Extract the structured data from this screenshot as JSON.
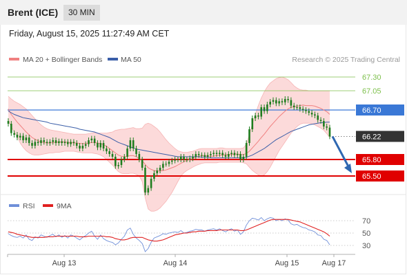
{
  "header": {
    "instrument": "Brent (ICE)",
    "timeframe": "30 MIN"
  },
  "datetime": "Friday, August 15, 2025 11:27:49 AM CET",
  "legend": {
    "bollinger_label": "MA 20 + Bollinger Bands",
    "ma50_label": "MA 50",
    "rsi_label": "RSI",
    "ma9_label": "9MA",
    "credit": "Research © 2025 Trading Central"
  },
  "colors": {
    "bollinger": "#f08080",
    "band_fill": "#fbd3d3",
    "ma50": "#3a5ea8",
    "candle": "#1e7d1e",
    "support": "#e00000",
    "resistance": "#7cbf4a",
    "pivot": "#3a78d6",
    "current": "#333333",
    "rsi": "#6f8fd9",
    "rsi_ma": "#e02020"
  },
  "chart_data": [
    {
      "type": "candlestick",
      "title": "Brent (ICE)",
      "timeframe": "30 MIN",
      "ylim": [
        65.2,
        67.45
      ],
      "x_ticks": [
        "Aug 13",
        "Aug 14",
        "Aug 15",
        "Aug 17"
      ],
      "levels": [
        {
          "label": "67.30",
          "value": 67.3,
          "kind": "resistance"
        },
        {
          "label": "67.05",
          "value": 67.05,
          "kind": "resistance"
        },
        {
          "label": "66.70",
          "value": 66.7,
          "kind": "pivot"
        },
        {
          "label": "66.22",
          "value": 66.22,
          "kind": "current"
        },
        {
          "label": "65.80",
          "value": 65.8,
          "kind": "support"
        },
        {
          "label": "65.50",
          "value": 65.5,
          "kind": "support"
        }
      ],
      "close": [
        66.45,
        66.28,
        66.25,
        66.2,
        66.23,
        66.15,
        66.2,
        66.1,
        66.05,
        66.12,
        66.1,
        66.15,
        66.12,
        66.1,
        66.12,
        66.15,
        66.1,
        66.13,
        66.1,
        66.12,
        66.08,
        66.12,
        66.1,
        66.05,
        66.0,
        66.05,
        66.08,
        66.15,
        66.18,
        66.1,
        66.02,
        66.1,
        66.0,
        65.95,
        65.9,
        65.85,
        65.68,
        65.7,
        65.8,
        65.85,
        66.0,
        66.15,
        66.0,
        65.9,
        65.8,
        65.65,
        65.2,
        65.28,
        65.45,
        65.55,
        65.6,
        65.65,
        65.72,
        65.72,
        65.76,
        65.78,
        65.8,
        65.8,
        65.85,
        65.8,
        65.8,
        65.82,
        65.85,
        65.9,
        65.88,
        65.88,
        65.85,
        65.88,
        65.9,
        65.92,
        65.9,
        65.92,
        65.88,
        65.85,
        65.9,
        65.92,
        65.88,
        65.9,
        65.8,
        65.85,
        66.1,
        66.35,
        66.55,
        66.6,
        66.58,
        66.75,
        66.68,
        66.8,
        66.85,
        66.88,
        66.82,
        66.86,
        66.84,
        66.9,
        66.88,
        66.78,
        66.75,
        66.75,
        66.72,
        66.7,
        66.68,
        66.65,
        66.62,
        66.6,
        66.52,
        66.5,
        66.4,
        66.38,
        66.22
      ],
      "ma20": [
        66.72,
        66.62,
        66.55,
        66.48,
        66.42,
        66.36,
        66.3,
        66.25,
        66.2,
        66.17,
        66.14,
        66.12,
        66.11,
        66.1,
        66.1,
        66.11,
        66.11,
        66.12,
        66.12,
        66.12,
        66.11,
        66.11,
        66.1,
        66.1,
        66.09,
        66.09,
        66.09,
        66.1,
        66.11,
        66.11,
        66.1,
        66.09,
        66.07,
        66.04,
        66.0,
        65.96,
        65.92,
        65.88,
        65.86,
        65.85,
        65.86,
        65.87,
        65.87,
        65.85,
        65.82,
        65.78,
        65.71,
        65.65,
        65.62,
        65.6,
        65.59,
        65.59,
        65.6,
        65.61,
        65.63,
        65.65,
        65.67,
        65.7,
        65.73,
        65.76,
        65.78,
        65.8,
        65.82,
        65.84,
        65.86,
        65.87,
        65.87,
        65.86,
        65.86,
        65.86,
        65.87,
        65.88,
        65.88,
        65.89,
        65.89,
        65.89,
        65.9,
        65.9,
        65.89,
        65.89,
        65.91,
        65.95,
        66.01,
        66.07,
        66.13,
        66.2,
        66.26,
        66.33,
        66.4,
        66.46,
        66.52,
        66.58,
        66.63,
        66.68,
        66.72,
        66.75,
        66.76,
        66.77,
        66.78,
        66.79,
        66.78,
        66.78,
        66.78,
        66.77,
        66.75,
        66.73,
        66.7,
        66.67,
        66.62
      ],
      "bb_upper": [
        66.95,
        66.9,
        66.86,
        66.83,
        66.8,
        66.76,
        66.72,
        66.66,
        66.6,
        66.54,
        66.48,
        66.43,
        66.39,
        66.36,
        66.34,
        66.33,
        66.32,
        66.31,
        66.3,
        66.29,
        66.28,
        66.27,
        66.26,
        66.26,
        66.26,
        66.26,
        66.26,
        66.27,
        66.28,
        66.29,
        66.28,
        66.28,
        66.28,
        66.28,
        66.29,
        66.3,
        66.33,
        66.34,
        66.35,
        66.35,
        66.36,
        66.37,
        66.38,
        66.36,
        66.36,
        66.37,
        66.44,
        66.46,
        66.44,
        66.4,
        66.36,
        66.3,
        66.23,
        66.16,
        66.1,
        66.05,
        66.0,
        65.96,
        65.94,
        65.93,
        65.93,
        65.94,
        65.95,
        65.97,
        65.99,
        66.0,
        66.0,
        66.0,
        66.0,
        66.0,
        66.0,
        66.01,
        66.01,
        66.0,
        66.0,
        66.0,
        66.0,
        66.0,
        66.0,
        66.01,
        66.08,
        66.25,
        66.45,
        66.62,
        66.78,
        66.92,
        67.03,
        67.12,
        67.19,
        67.23,
        67.27,
        67.29,
        67.3,
        67.28,
        67.25,
        67.2,
        67.14,
        67.1,
        67.07,
        67.06,
        67.06,
        67.05,
        67.05,
        67.05,
        67.05,
        67.05,
        67.05,
        67.05,
        67.05
      ],
      "bb_lower": [
        66.5,
        66.4,
        66.3,
        66.22,
        66.1,
        66.02,
        65.96,
        65.92,
        65.89,
        65.88,
        65.88,
        65.89,
        65.9,
        65.91,
        65.92,
        65.92,
        65.93,
        65.93,
        65.94,
        65.95,
        65.95,
        65.95,
        65.95,
        65.94,
        65.93,
        65.92,
        65.92,
        65.92,
        65.92,
        65.91,
        65.9,
        65.88,
        65.85,
        65.8,
        65.75,
        65.7,
        65.64,
        65.58,
        65.55,
        65.54,
        65.54,
        65.55,
        65.55,
        65.53,
        65.5,
        65.4,
        65.1,
        64.9,
        64.86,
        64.86,
        64.88,
        64.92,
        64.98,
        65.04,
        65.12,
        65.2,
        65.3,
        65.4,
        65.5,
        65.56,
        65.6,
        65.63,
        65.66,
        65.69,
        65.71,
        65.73,
        65.74,
        65.74,
        65.74,
        65.74,
        65.74,
        65.75,
        65.75,
        65.75,
        65.75,
        65.75,
        65.75,
        65.75,
        65.75,
        65.74,
        65.72,
        65.66,
        65.6,
        65.56,
        65.52,
        65.5,
        65.52,
        65.58,
        65.66,
        65.76,
        65.86,
        65.96,
        66.04,
        66.12,
        66.2,
        66.28,
        66.34,
        66.4,
        66.44,
        66.46,
        66.46,
        66.46,
        66.45,
        66.43,
        66.4,
        66.37,
        66.33,
        66.27,
        66.2
      ],
      "ma50": [
        66.68,
        66.65,
        66.62,
        66.6,
        66.58,
        66.56,
        66.55,
        66.54,
        66.53,
        66.52,
        66.51,
        66.5,
        66.49,
        66.48,
        66.46,
        66.45,
        66.44,
        66.43,
        66.42,
        66.41,
        66.4,
        66.39,
        66.38,
        66.37,
        66.35,
        66.34,
        66.33,
        66.32,
        66.31,
        66.3,
        66.28,
        66.26,
        66.24,
        66.22,
        66.2,
        66.17,
        66.14,
        66.11,
        66.09,
        66.07,
        66.05,
        66.03,
        66.01,
        65.99,
        65.98,
        65.97,
        65.96,
        65.95,
        65.94,
        65.93,
        65.92,
        65.91,
        65.9,
        65.89,
        65.88,
        65.87,
        65.86,
        65.85,
        65.85,
        65.85,
        65.85,
        65.85,
        65.85,
        65.85,
        65.85,
        65.84,
        65.84,
        65.84,
        65.83,
        65.83,
        65.83,
        65.83,
        65.83,
        65.83,
        65.83,
        65.83,
        65.83,
        65.83,
        65.83,
        65.83,
        65.84,
        65.86,
        65.88,
        65.91,
        65.94,
        65.97,
        66.0,
        66.04,
        66.08,
        66.12,
        66.16,
        66.19,
        66.22,
        66.25,
        66.28,
        66.31,
        66.33,
        66.35,
        66.37,
        66.39,
        66.41,
        66.43,
        66.44,
        66.45,
        66.46,
        66.47,
        66.47,
        66.48,
        66.48
      ],
      "forecast": {
        "from": 66.22,
        "to": 65.5
      }
    },
    {
      "type": "line",
      "title": "RSI",
      "ylim": [
        20,
        80
      ],
      "y_ticks": [
        "70",
        "50",
        "30"
      ],
      "series": [
        {
          "name": "RSI",
          "values": [
            49,
            46,
            44,
            43,
            45,
            42,
            47,
            40,
            38,
            44,
            42,
            47,
            45,
            43,
            46,
            48,
            44,
            47,
            43,
            46,
            42,
            47,
            45,
            42,
            39,
            43,
            46,
            50,
            53,
            45,
            40,
            47,
            41,
            38,
            36,
            35,
            31,
            34,
            40,
            45,
            55,
            58,
            48,
            42,
            38,
            33,
            20,
            25,
            35,
            42,
            44,
            46,
            49,
            48,
            50,
            51,
            52,
            51,
            54,
            50,
            51,
            53,
            54,
            56,
            55,
            55,
            53,
            55,
            56,
            57,
            55,
            57,
            54,
            52,
            55,
            57,
            53,
            55,
            48,
            52,
            63,
            70,
            74,
            73,
            71,
            75,
            70,
            73,
            75,
            74,
            70,
            72,
            70,
            73,
            71,
            65,
            63,
            64,
            61,
            59,
            58,
            55,
            54,
            52,
            47,
            46,
            40,
            38,
            31
          ]
        },
        {
          "name": "9MA",
          "values": [
            52,
            51,
            50,
            48,
            47,
            46,
            45,
            44,
            43,
            43,
            43,
            43,
            43,
            44,
            44,
            44,
            45,
            45,
            45,
            45,
            45,
            45,
            45,
            45,
            44,
            44,
            44,
            45,
            45,
            45,
            45,
            45,
            45,
            44,
            44,
            43,
            41,
            40,
            39,
            39,
            40,
            42,
            43,
            43,
            43,
            43,
            41,
            39,
            38,
            37,
            37,
            38,
            39,
            41,
            43,
            45,
            47,
            48,
            49,
            50,
            50,
            51,
            52,
            52,
            53,
            53,
            53,
            54,
            54,
            54,
            54,
            55,
            55,
            55,
            55,
            55,
            55,
            55,
            54,
            54,
            55,
            57,
            59,
            61,
            63,
            65,
            67,
            69,
            71,
            72,
            72,
            72,
            72,
            72,
            72,
            71,
            70,
            69,
            68,
            66,
            64,
            62,
            60,
            58,
            56,
            54,
            52,
            49,
            45
          ]
        }
      ]
    }
  ]
}
